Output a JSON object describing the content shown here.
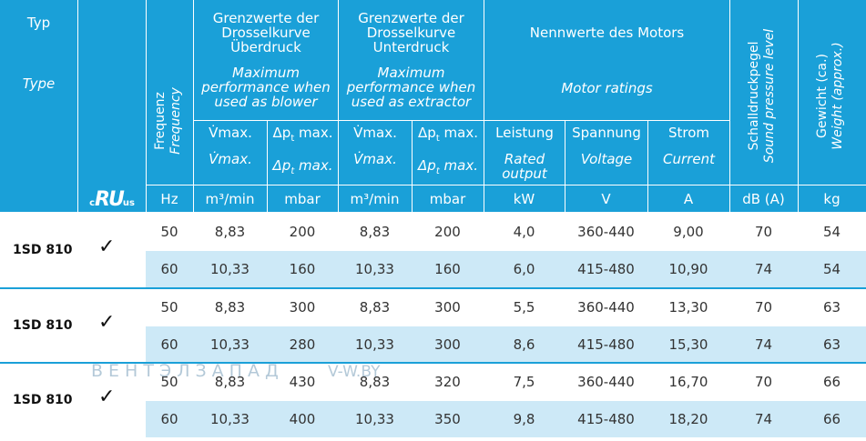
{
  "header": {
    "typ_de": "Typ",
    "typ_en": "Type",
    "freq_de": "Frequenz",
    "freq_en": "Frequency",
    "over_de": "Grenzwerte der Drosselkurve Überdruck",
    "over_en": "Maximum performance when used as blower",
    "under_de": "Grenzwerte der Drosselkurve Unterdruck",
    "under_en": "Maximum performance when used as extractor",
    "motor_de": "Nennwerte des Motors",
    "motor_en": "Motor ratings",
    "sound_de": "Schalldruckpegel",
    "sound_en": "Sound pressure level",
    "weight_de": "Gewicht (ca.)",
    "weight_en": "Weight (approx.)",
    "vmax_de": "V̇max.",
    "vmax_en": "V̇max.",
    "dp_de": "Δp",
    "dp_en": "Δp",
    "dp_suffix": " max.",
    "dp_sub": "t",
    "leistung_de": "Leistung",
    "leistung_en": "Rated output",
    "spannung_de": "Spannung",
    "spannung_en": "Voltage",
    "strom_de": "Strom",
    "strom_en": "Current",
    "cert_logo": "cRUus",
    "units": [
      "Hz",
      "m³/min",
      "mbar",
      "m³/min",
      "mbar",
      "kW",
      "V",
      "A",
      "dB (A)",
      "kg"
    ]
  },
  "groups": [
    {
      "type": "1SD 810",
      "check": "✓",
      "rows": [
        [
          "50",
          "8,83",
          "200",
          "8,83",
          "200",
          "4,0",
          "360-440",
          "9,00",
          "70",
          "54"
        ],
        [
          "60",
          "10,33",
          "160",
          "10,33",
          "160",
          "6,0",
          "415-480",
          "10,90",
          "74",
          "54"
        ]
      ]
    },
    {
      "type": "1SD 810",
      "check": "✓",
      "rows": [
        [
          "50",
          "8,83",
          "300",
          "8,83",
          "300",
          "5,5",
          "360-440",
          "13,30",
          "70",
          "63"
        ],
        [
          "60",
          "10,33",
          "280",
          "10,33",
          "300",
          "8,6",
          "415-480",
          "15,30",
          "74",
          "63"
        ]
      ]
    },
    {
      "type": "1SD 810",
      "check": "✓",
      "rows": [
        [
          "50",
          "8,83",
          "430",
          "8,83",
          "320",
          "7,5",
          "360-440",
          "16,70",
          "70",
          "66"
        ],
        [
          "60",
          "10,33",
          "400",
          "10,33",
          "350",
          "9,8",
          "415-480",
          "18,20",
          "74",
          "66"
        ]
      ]
    }
  ],
  "watermark": {
    "brand": "ВЕНТЭЛЗАПАД",
    "site": "V-W.BY"
  },
  "colors": {
    "header_bg": "#1aa0d8",
    "alt_row": "#cde9f7",
    "text": "#333333"
  }
}
